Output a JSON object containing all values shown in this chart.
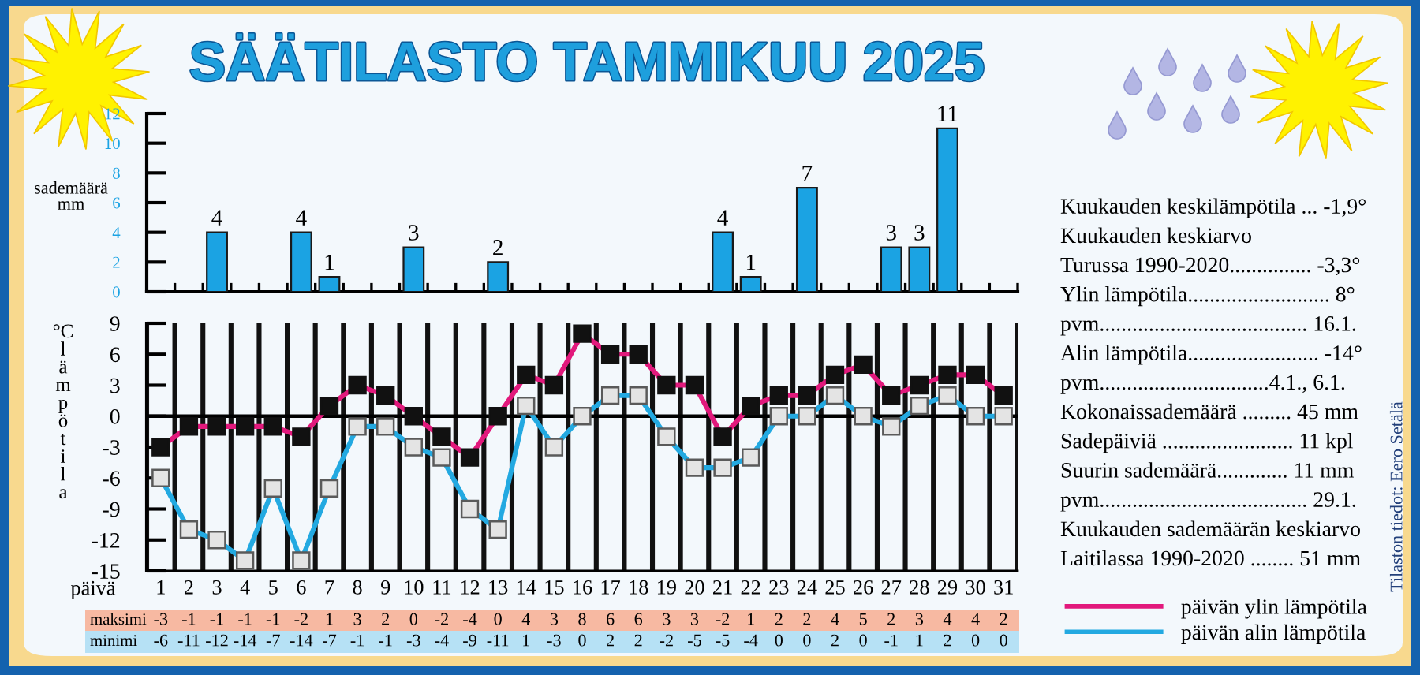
{
  "chart_data": [
    {
      "type": "bar",
      "title": "SÄÄTILASTO TAMMIKUU 2025",
      "ylabel": "sademäärä\nmm",
      "categories": [
        "1",
        "2",
        "3",
        "4",
        "5",
        "6",
        "7",
        "8",
        "9",
        "10",
        "11",
        "12",
        "13",
        "14",
        "15",
        "16",
        "17",
        "18",
        "19",
        "20",
        "21",
        "22",
        "23",
        "24",
        "25",
        "26",
        "27",
        "28",
        "29",
        "30",
        "31"
      ],
      "values": [
        null,
        null,
        4,
        null,
        null,
        4,
        1,
        null,
        null,
        3,
        null,
        null,
        2,
        null,
        null,
        null,
        null,
        null,
        null,
        null,
        4,
        1,
        null,
        7,
        null,
        null,
        3,
        3,
        11,
        null,
        null
      ],
      "color": "#1ba3e3",
      "ylim": [
        0,
        12
      ],
      "yticks": [
        0,
        2,
        4,
        6,
        8,
        10,
        12
      ],
      "data_labels": true,
      "tick_labels": "y"
    },
    {
      "type": "line",
      "xlabel": "päivä",
      "ylabel": "°C\nlämpötila",
      "categories": [
        "1",
        "2",
        "3",
        "4",
        "5",
        "6",
        "7",
        "8",
        "9",
        "10",
        "11",
        "12",
        "13",
        "14",
        "15",
        "16",
        "17",
        "18",
        "19",
        "20",
        "21",
        "22",
        "23",
        "24",
        "25",
        "26",
        "27",
        "28",
        "29",
        "30",
        "31"
      ],
      "series": [
        {
          "name": "päivän ylin lämpötila",
          "color": "#e2197c",
          "values": [
            -3,
            -1,
            -1,
            -1,
            -1,
            -2,
            1,
            3,
            2,
            0,
            -2,
            -4,
            0,
            4,
            3,
            8,
            6,
            6,
            3,
            3,
            -2,
            1,
            2,
            2,
            4,
            5,
            2,
            3,
            4,
            4,
            2
          ]
        },
        {
          "name": "päivän alin lämpötila",
          "color": "#23a9e1",
          "values": [
            -6,
            -11,
            -12,
            -14,
            -7,
            -14,
            -7,
            -1,
            -1,
            -3,
            -4,
            -9,
            -11,
            1,
            -3,
            0,
            2,
            2,
            -2,
            -5,
            -5,
            -4,
            0,
            0,
            2,
            0,
            -1,
            1,
            2,
            0,
            0
          ]
        }
      ],
      "ylim": [
        -15,
        9
      ],
      "yticks": [
        -15,
        -12,
        -9,
        -6,
        -3,
        0,
        3,
        6,
        9
      ],
      "grid": "x",
      "marker": "square",
      "line_style": "solid",
      "ref_lines": [
        {
          "axis": "y",
          "value": 0,
          "color": "#000000"
        }
      ],
      "data_labels": true,
      "legend": "bottom right",
      "annotations": [
        "maksimi",
        "minimi"
      ]
    },
    {
      "type": "other",
      "annotations": [
        "Kuukauden keskilämpötila ... -1,9°",
        "Kuukauden keskiarvo",
        "Turussa 1990-2020............... -3,3°",
        "Ylin lämpötila.......................... 8°",
        "pvm...................................... 16.1.",
        "Alin lämpötila........................ -14°",
        "pvm...............................4.1., 6.1.",
        "Kokonaissademäärä ......... 45 mm",
        "Sadepäiviä ........................ 11 kpl",
        "Suurin sademäärä............. 11 mm",
        "pvm...................................... 29.1.",
        "Kuukauden sademäärän keskiarvo",
        "Laitilassa 1990-2020 ........ 51 mm",
        "Tilaston tiedot: Eero Setälä"
      ]
    }
  ]
}
